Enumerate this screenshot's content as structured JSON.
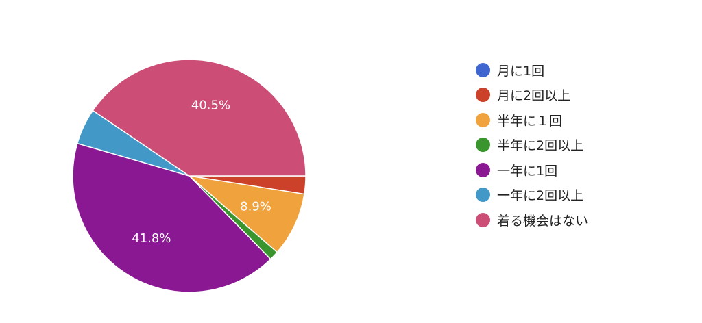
{
  "chart_data": {
    "type": "pie",
    "title": "",
    "legend_position": "right",
    "slices": [
      {
        "name": "月に1回",
        "value": 0.0,
        "color": "#3f65cf",
        "label": ""
      },
      {
        "name": "月に2回以上",
        "value": 2.5,
        "color": "#cc4129",
        "label": ""
      },
      {
        "name": "半年に１回",
        "value": 8.9,
        "color": "#f0a23d",
        "label": "8.9%"
      },
      {
        "name": "半年に2回以上",
        "value": 1.3,
        "color": "#3a952f",
        "label": ""
      },
      {
        "name": "一年に1回",
        "value": 41.8,
        "color": "#8a1893",
        "label": "41.8%"
      },
      {
        "name": "一年に2回以上",
        "value": 5.0,
        "color": "#4299c8",
        "label": ""
      },
      {
        "name": "着る機会はない",
        "value": 40.5,
        "color": "#cc4e77",
        "label": "40.5%"
      }
    ]
  }
}
